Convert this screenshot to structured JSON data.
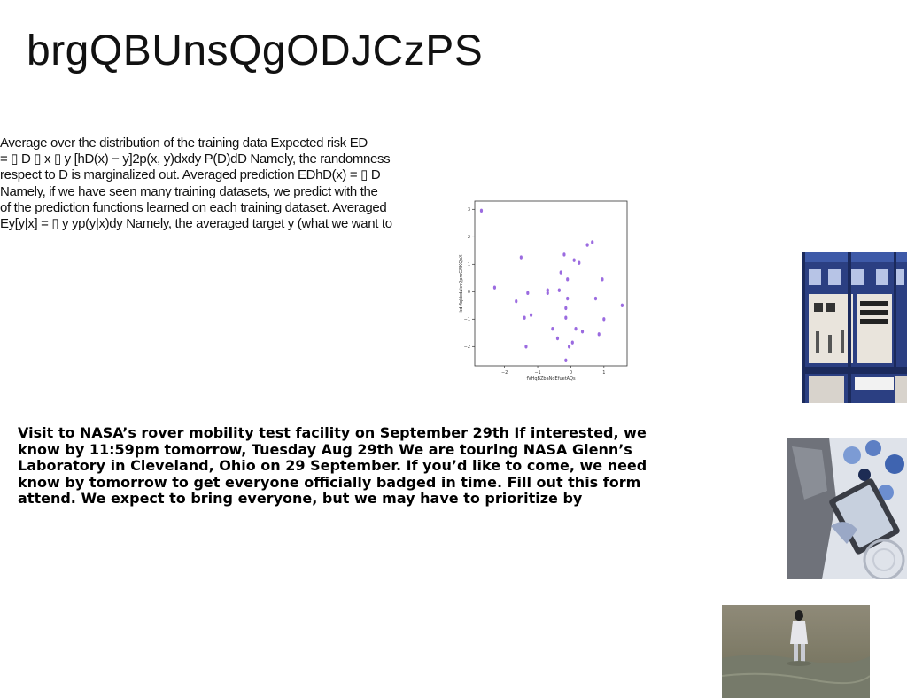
{
  "title": "brgQBUnsQgODJCzPS",
  "risk_text_lines": [
    "Average over the distribution of the training data Expected risk ED",
    "= ▯ D ▯ x ▯ y [hD(x) − y]2p(x, y)dxdy P(D)dD Namely, the randomness",
    "respect to D is marginalized out. Averaged prediction EDhD(x) = ▯ D",
    "Namely, if we have seen many training datasets, we predict with the",
    "of the prediction functions learned on each training dataset. Averaged",
    "Ey[y|x] = ▯ y yp(y|x)dy Namely, the averaged target y (what we want to"
  ],
  "nasa_text_lines": [
    "Visit to NASA’s rover mobility test facility on September 29th If interested, we",
    "know by 11:59pm tomorrow, Tuesday Aug 29th We are touring NASA Glenn’s",
    "Laboratory in Cleveland, Ohio on 29 September. If you’d like to come, we need",
    "know by tomorrow to get everyone officially badged in time. Fill out this form",
    "attend. We expect to bring everyone, but we may have to prioritize by"
  ],
  "chart_data": {
    "type": "scatter",
    "xlabel": "fVHqBZbaNdEfuetAQs",
    "ylabel": "kdMqkbdaknQpmGNKQoX",
    "xlim": [
      -2.9,
      1.7
    ],
    "ylim": [
      -2.7,
      3.3
    ],
    "xticks": [
      -2,
      -1,
      0,
      1
    ],
    "yticks": [
      -2,
      -1,
      0,
      1,
      2,
      3
    ],
    "marker_color": "#9b6be0",
    "points": [
      [
        -2.7,
        2.95
      ],
      [
        -2.3,
        0.15
      ],
      [
        -1.65,
        -0.35
      ],
      [
        -1.5,
        1.25
      ],
      [
        -1.4,
        -0.95
      ],
      [
        -1.35,
        -2.0
      ],
      [
        -1.3,
        -0.05
      ],
      [
        -1.2,
        -0.85
      ],
      [
        -0.7,
        -0.05
      ],
      [
        -0.7,
        0.05
      ],
      [
        -0.55,
        -1.35
      ],
      [
        -0.4,
        -1.7
      ],
      [
        -0.35,
        0.05
      ],
      [
        -0.3,
        0.7
      ],
      [
        -0.2,
        1.35
      ],
      [
        -0.15,
        -0.6
      ],
      [
        -0.15,
        -0.95
      ],
      [
        -0.15,
        -2.5
      ],
      [
        -0.1,
        0.45
      ],
      [
        -0.1,
        -0.25
      ],
      [
        -0.05,
        -2.0
      ],
      [
        0.05,
        -1.85
      ],
      [
        0.1,
        1.15
      ],
      [
        0.15,
        -1.35
      ],
      [
        0.25,
        1.05
      ],
      [
        0.35,
        -1.45
      ],
      [
        0.5,
        1.7
      ],
      [
        0.65,
        1.8
      ],
      [
        0.75,
        -0.25
      ],
      [
        0.85,
        -1.55
      ],
      [
        0.95,
        0.45
      ],
      [
        1.0,
        -1.0
      ],
      [
        1.55,
        -0.5
      ]
    ]
  },
  "images": {
    "building": "building-photo",
    "tablet": "tablet-photo",
    "shore": "shoreline-photo"
  }
}
